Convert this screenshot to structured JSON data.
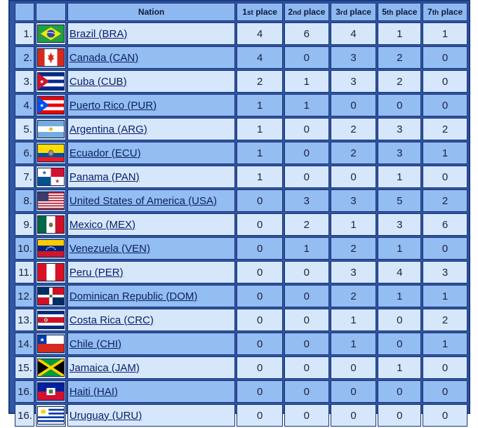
{
  "header": {
    "nation": "Nation",
    "place1": {
      "num": "1",
      "suf": "st",
      "word": " place"
    },
    "place2": {
      "num": "2",
      "suf": "nd",
      "word": " place"
    },
    "place3": {
      "num": "3",
      "suf": "rd",
      "word": " place"
    },
    "place5": {
      "num": "5",
      "suf": "th",
      "word": " place"
    },
    "place7": {
      "num": "7",
      "suf": "th",
      "word": " place"
    }
  },
  "rows": [
    {
      "rank": "1.",
      "nation": "Brazil (BRA)",
      "flag": "brazil-flag-icon",
      "p1": 4,
      "p2": 6,
      "p3": 4,
      "p5": 1,
      "p7": 1
    },
    {
      "rank": "2.",
      "nation": "Canada (CAN)",
      "flag": "canada-flag-icon",
      "p1": 4,
      "p2": 0,
      "p3": 3,
      "p5": 2,
      "p7": 0
    },
    {
      "rank": "3.",
      "nation": "Cuba (CUB)",
      "flag": "cuba-flag-icon",
      "p1": 2,
      "p2": 1,
      "p3": 3,
      "p5": 2,
      "p7": 0
    },
    {
      "rank": "4.",
      "nation": "Puerto Rico (PUR)",
      "flag": "puerto-rico-flag-icon",
      "p1": 1,
      "p2": 1,
      "p3": 0,
      "p5": 0,
      "p7": 0
    },
    {
      "rank": "5.",
      "nation": "Argentina (ARG)",
      "flag": "argentina-flag-icon",
      "p1": 1,
      "p2": 0,
      "p3": 2,
      "p5": 3,
      "p7": 2
    },
    {
      "rank": "6.",
      "nation": "Ecuador (ECU)",
      "flag": "ecuador-flag-icon",
      "p1": 1,
      "p2": 0,
      "p3": 2,
      "p5": 3,
      "p7": 1
    },
    {
      "rank": "7.",
      "nation": "Panama (PAN)",
      "flag": "panama-flag-icon",
      "p1": 1,
      "p2": 0,
      "p3": 0,
      "p5": 1,
      "p7": 0
    },
    {
      "rank": "8.",
      "nation": "United States of America (USA)",
      "flag": "usa-flag-icon",
      "p1": 0,
      "p2": 3,
      "p3": 3,
      "p5": 5,
      "p7": 2
    },
    {
      "rank": "9.",
      "nation": "Mexico (MEX)",
      "flag": "mexico-flag-icon",
      "p1": 0,
      "p2": 2,
      "p3": 1,
      "p5": 3,
      "p7": 6
    },
    {
      "rank": "10.",
      "nation": "Venezuela (VEN)",
      "flag": "venezuela-flag-icon",
      "p1": 0,
      "p2": 1,
      "p3": 2,
      "p5": 1,
      "p7": 0
    },
    {
      "rank": "11.",
      "nation": "Peru (PER)",
      "flag": "peru-flag-icon",
      "p1": 0,
      "p2": 0,
      "p3": 3,
      "p5": 4,
      "p7": 3
    },
    {
      "rank": "12.",
      "nation": "Dominican Republic (DOM)",
      "flag": "dominican-republic-flag-icon",
      "p1": 0,
      "p2": 0,
      "p3": 2,
      "p5": 1,
      "p7": 1
    },
    {
      "rank": "13.",
      "nation": "Costa Rica (CRC)",
      "flag": "costa-rica-flag-icon",
      "p1": 0,
      "p2": 0,
      "p3": 1,
      "p5": 0,
      "p7": 2
    },
    {
      "rank": "14.",
      "nation": "Chile (CHI)",
      "flag": "chile-flag-icon",
      "p1": 0,
      "p2": 0,
      "p3": 1,
      "p5": 0,
      "p7": 1
    },
    {
      "rank": "15.",
      "nation": "Jamaica (JAM)",
      "flag": "jamaica-flag-icon",
      "p1": 0,
      "p2": 0,
      "p3": 0,
      "p5": 1,
      "p7": 0
    },
    {
      "rank": "16.",
      "nation": "Haiti (HAI)",
      "flag": "haiti-flag-icon",
      "p1": 0,
      "p2": 0,
      "p3": 0,
      "p5": 0,
      "p7": 0
    },
    {
      "rank": "16.",
      "nation": "Uruguay (URU)",
      "flag": "uruguay-flag-icon",
      "p1": 0,
      "p2": 0,
      "p3": 0,
      "p5": 0,
      "p7": 0
    }
  ]
}
